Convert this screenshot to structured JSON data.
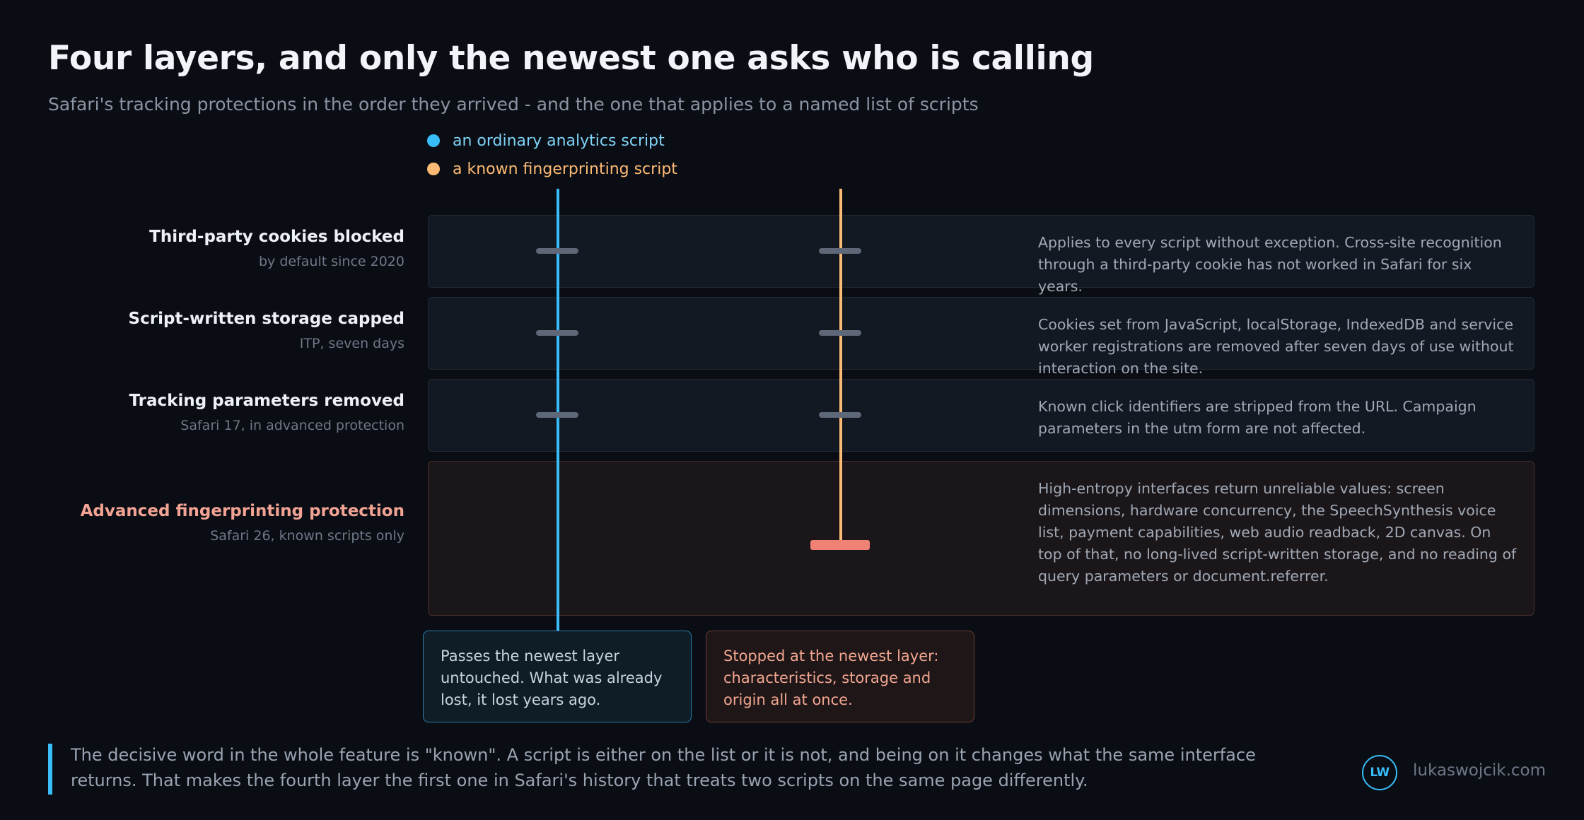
{
  "header": {
    "title": "Four layers, and only the newest one asks who is calling",
    "subtitle": "Safari's tracking protections in the order they arrived - and the one that applies to a named list of scripts"
  },
  "legend": [
    {
      "label": "an ordinary analytics script",
      "color": "#38bdf8"
    },
    {
      "label": "a known fingerprinting script",
      "color": "#fdba74"
    }
  ],
  "layers": [
    {
      "name": "Third-party cookies blocked",
      "sub": "by default since 2020",
      "description": "Applies to every script without exception. Cross-site recognition through a third-party cookie has not worked in Safari for six years."
    },
    {
      "name": "Script-written storage capped",
      "sub": "ITP, seven days",
      "description": "Cookies set from JavaScript, localStorage, IndexedDB and service worker registrations are removed after seven days of use without interaction on the site."
    },
    {
      "name": "Tracking parameters removed",
      "sub": "Safari 17, in advanced protection",
      "description": "Known click identifiers are stripped from the URL. Campaign parameters in the utm form are not affected."
    },
    {
      "name": "Advanced fingerprinting protection",
      "sub": "Safari 26, known scripts only",
      "description": "High-entropy interfaces return unreliable values: screen dimensions, hardware concurrency, the SpeechSynthesis voice list, payment capabilities, web audio readback, 2D canvas. On top of that, no long-lived script-written storage, and no reading of query parameters or document.referrer."
    }
  ],
  "callouts": {
    "analytics": "Passes the newest layer untouched. What was already lost, it lost years ago.",
    "fingerprinting": "Stopped at the newest layer: characteristics, storage and origin all at once."
  },
  "footer": {
    "note": "The decisive word in the whole feature is \"known\". A script is either on the list or it is not, and being on it changes what the same interface returns. That makes the fourth layer the first one in Safari's history that treats two scripts on the same page differently.",
    "logo": "LW",
    "site": "lukaswojcik.com"
  },
  "colors": {
    "analytics": "#38bdf8",
    "fingerprinting": "#fdba74",
    "stop": "#f08275",
    "accent_label": "#f2a393"
  }
}
